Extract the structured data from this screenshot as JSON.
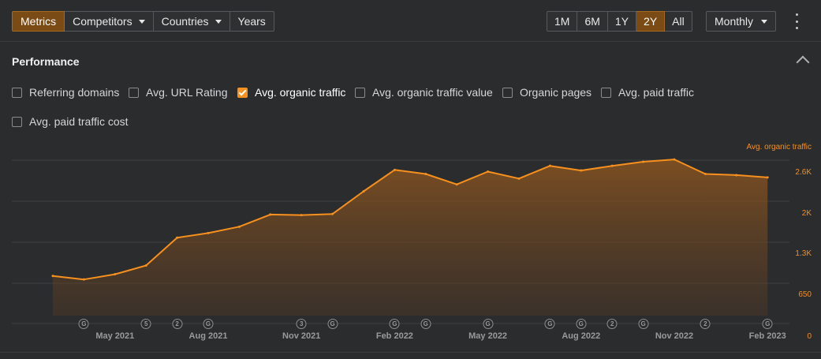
{
  "toolbar": {
    "tabs": [
      {
        "label": "Metrics",
        "active": true
      },
      {
        "label": "Competitors",
        "dropdown": true
      },
      {
        "label": "Countries",
        "dropdown": true
      },
      {
        "label": "Years"
      }
    ],
    "ranges": [
      {
        "label": "1M"
      },
      {
        "label": "6M"
      },
      {
        "label": "1Y"
      },
      {
        "label": "2Y",
        "active": true
      },
      {
        "label": "All"
      }
    ],
    "interval": "Monthly",
    "more_icon": "more-vertical-icon"
  },
  "panel": {
    "title": "Performance",
    "collapse_icon": "chevron-up-icon",
    "checkboxes": [
      {
        "label": "Referring domains",
        "checked": false
      },
      {
        "label": "Avg. URL Rating",
        "checked": false
      },
      {
        "label": "Avg. organic traffic",
        "checked": true
      },
      {
        "label": "Avg. organic traffic value",
        "checked": false
      },
      {
        "label": "Organic pages",
        "checked": false
      },
      {
        "label": "Avg. paid traffic",
        "checked": false
      },
      {
        "label": "Avg. paid traffic cost",
        "checked": false
      }
    ]
  },
  "colors": {
    "accent": "#f6901e",
    "active_button": "#7a4b14",
    "background": "#2b2c2e",
    "gridline": "#3f4042"
  },
  "chart_data": {
    "type": "area",
    "series": [
      {
        "name": "Avg. organic traffic",
        "x": [
          "2021-03",
          "2021-04",
          "2021-05",
          "2021-06",
          "2021-07",
          "2021-08",
          "2021-09",
          "2021-10",
          "2021-11",
          "2021-12",
          "2022-01",
          "2022-02",
          "2022-03",
          "2022-04",
          "2022-05",
          "2022-06",
          "2022-07",
          "2022-08",
          "2022-09",
          "2022-10",
          "2022-11",
          "2022-12",
          "2023-01",
          "2023-02"
        ],
        "values": [
          820,
          760,
          850,
          1000,
          1480,
          1560,
          1670,
          1880,
          1870,
          1890,
          2280,
          2650,
          2580,
          2400,
          2620,
          2500,
          2720,
          2640,
          2720,
          2790,
          2830,
          2580,
          2560,
          2520
        ]
      }
    ],
    "ylim": [
      0,
      2600
    ],
    "y_ticks": [
      {
        "value": 0,
        "label": "0"
      },
      {
        "value": 650,
        "label": "650"
      },
      {
        "value": 1300,
        "label": "1.3K"
      },
      {
        "value": 1950,
        "label": "2K"
      },
      {
        "value": 2600,
        "label": "2.6K"
      }
    ],
    "x_tick_labels": [
      {
        "month": "2021-05",
        "label": "May 2021"
      },
      {
        "month": "2021-08",
        "label": "Aug 2021"
      },
      {
        "month": "2021-11",
        "label": "Nov 2021"
      },
      {
        "month": "2022-02",
        "label": "Feb 2022"
      },
      {
        "month": "2022-05",
        "label": "May 2022"
      },
      {
        "month": "2022-08",
        "label": "Aug 2022"
      },
      {
        "month": "2022-11",
        "label": "Nov 2022"
      },
      {
        "month": "2023-02",
        "label": "Feb 2023"
      }
    ],
    "annotations": [
      {
        "month": "2021-04",
        "label": "G"
      },
      {
        "month": "2021-06",
        "label": "5"
      },
      {
        "month": "2021-07",
        "label": "2"
      },
      {
        "month": "2021-08",
        "label": "G"
      },
      {
        "month": "2021-11",
        "label": "3"
      },
      {
        "month": "2021-12",
        "label": "G"
      },
      {
        "month": "2022-02",
        "label": "G"
      },
      {
        "month": "2022-03",
        "label": "G"
      },
      {
        "month": "2022-05",
        "label": "G"
      },
      {
        "month": "2022-07",
        "label": "G"
      },
      {
        "month": "2022-08",
        "label": "G"
      },
      {
        "month": "2022-09",
        "label": "2"
      },
      {
        "month": "2022-10",
        "label": "G"
      },
      {
        "month": "2022-12",
        "label": "2"
      },
      {
        "month": "2023-02",
        "label": "G"
      }
    ],
    "legend": "top-right",
    "grid": true
  }
}
